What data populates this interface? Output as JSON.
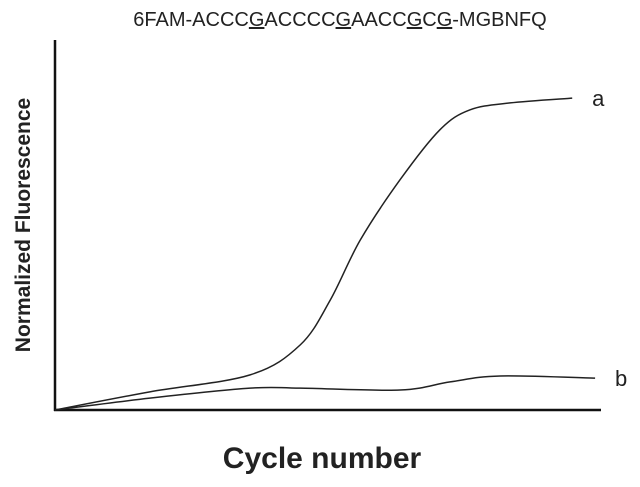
{
  "chart_data": {
    "type": "line",
    "title_parts": [
      "6FAM-ACCC",
      "G",
      "ACCCC",
      "G",
      "AACC",
      "G",
      "C",
      "G",
      "-MGBNFQ"
    ],
    "x_label": "Cycle number",
    "y_label": "Normalized Fluorescence",
    "xlim": [
      0,
      100
    ],
    "ylim": [
      0,
      100
    ],
    "series": [
      {
        "name": "a",
        "color": "#222222",
        "x": [
          0,
          17.4,
          35.8,
          45,
          50.5,
          56,
          63.3,
          70.6,
          76.1,
          83.5,
          94.9
        ],
        "values": [
          0,
          4.9,
          9.5,
          17.6,
          29.7,
          45.9,
          62.2,
          75.7,
          81.1,
          83,
          84.3
        ]
      },
      {
        "name": "b",
        "color": "#222222",
        "x": [
          0,
          17.4,
          35.8,
          45,
          63.3,
          72.5,
          81.7,
          99.1
        ],
        "values": [
          0,
          3.2,
          5.9,
          5.9,
          5.4,
          7.6,
          9.2,
          8.6
        ]
      }
    ]
  }
}
